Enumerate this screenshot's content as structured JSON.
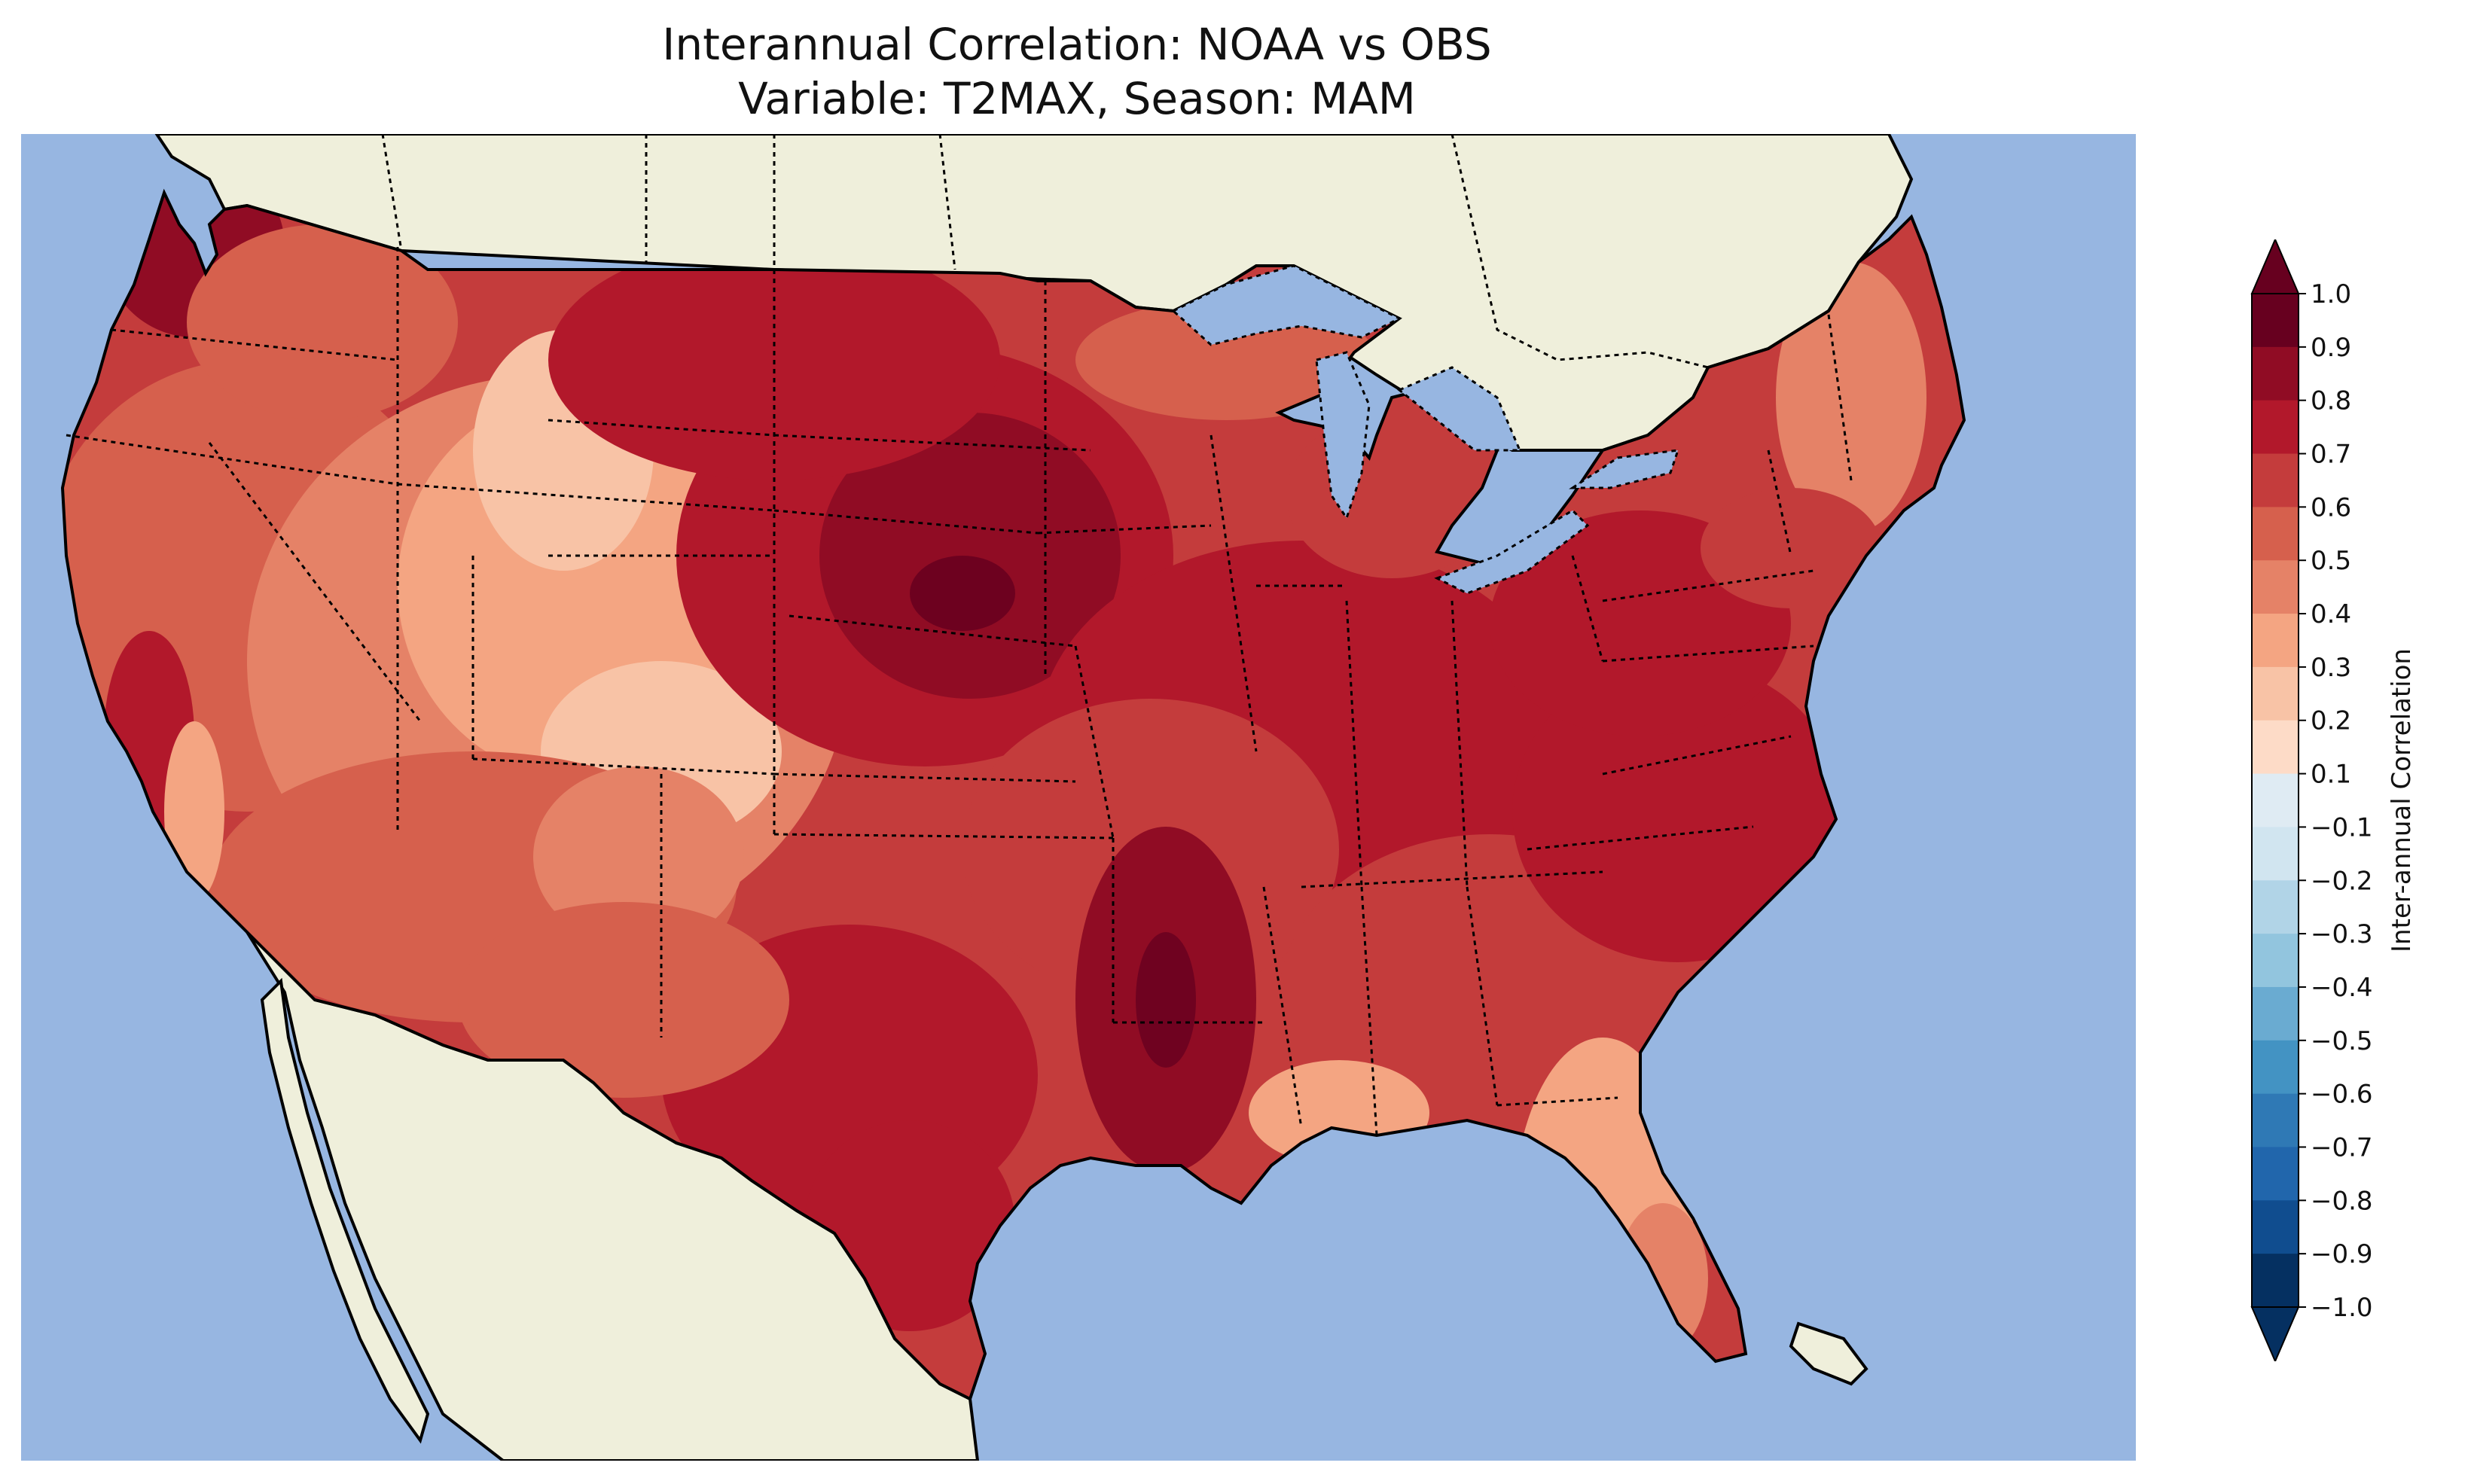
{
  "title_line1": "Interannual Correlation: NOAA vs OBS",
  "title_line2": "Variable: T2MAX, Season: MAM",
  "colorbar": {
    "label": "Inter-annual Correlation",
    "ticks": [
      "1.0",
      "0.9",
      "0.8",
      "0.7",
      "0.6",
      "0.5",
      "0.4",
      "0.3",
      "0.2",
      "0.1",
      "−0.1",
      "−0.2",
      "−0.3",
      "−0.4",
      "−0.5",
      "−0.6",
      "−0.7",
      "−0.8",
      "−0.9",
      "−1.0"
    ],
    "colors": [
      "#67001f",
      "#900c24",
      "#b2182b",
      "#c43c3c",
      "#d6604d",
      "#e58267",
      "#f4a582",
      "#f8c3a6",
      "#fddbc7",
      "#f7f7f7",
      "#dfebf3",
      "#d1e5f0",
      "#b1d4e7",
      "#92c5de",
      "#6aabd1",
      "#4393c3",
      "#2f79b5",
      "#2166ac",
      "#104d8f",
      "#053061"
    ],
    "extend_max_color": "#67001f",
    "extend_min_color": "#053061"
  },
  "map": {
    "ocean_color": "#97b6e1",
    "land_color": "#efefdb",
    "field_colors": {
      "very_high": "#900c24",
      "high": "#b2182b",
      "mid_high": "#c43c3c",
      "mid": "#d6604d",
      "mid_low": "#e58267",
      "low": "#f4a582"
    }
  }
}
